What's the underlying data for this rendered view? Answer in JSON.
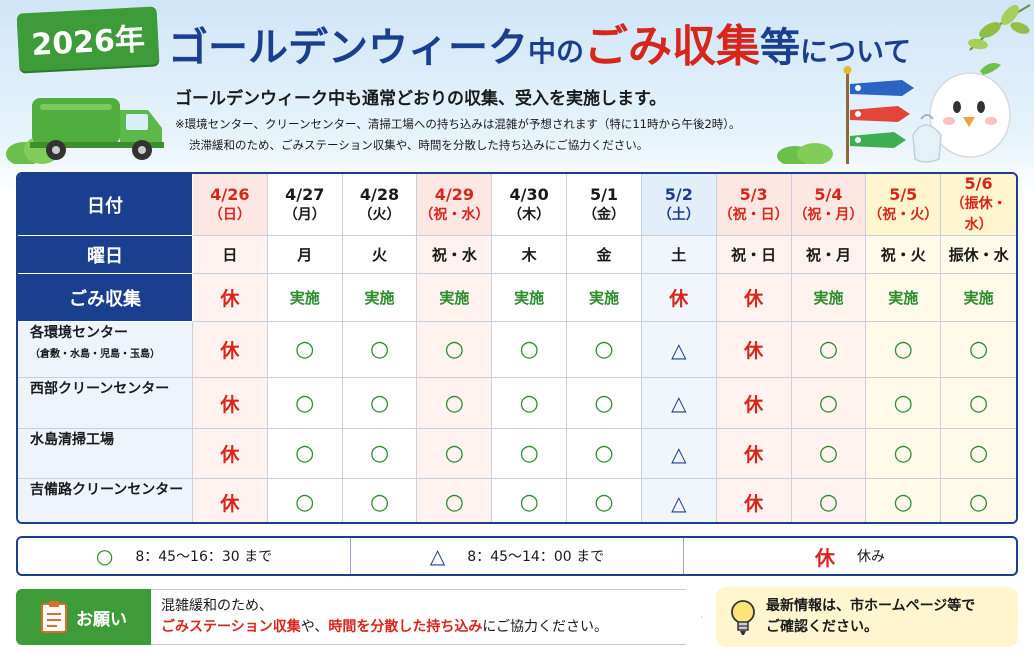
{
  "header": {
    "year": "2026年",
    "title_part1": "ゴールデンウィーク",
    "title_part2": "中の",
    "title_part3": "ごみ収集",
    "title_part4": "等",
    "title_part5": "について",
    "subtitle": "ゴールデンウィーク中も通常どおりの収集、受入を実施します。",
    "note_line1": "※環境センター、クリーンセンター、清掃工場への持ち込みは混雑が予想されます（特に11時から午後2時）。",
    "note_line2": "渋滞緩和のため、ごみステーション収集や、時間を分散した持ち込みにご協力ください。"
  },
  "table": {
    "label_date": "日付",
    "label_weekday": "曜日",
    "label_collection": "ごみ収集",
    "days": [
      {
        "date": "4/26",
        "paren": "（日）",
        "weekday": "日",
        "collection": "休",
        "theme": "pink"
      },
      {
        "date": "4/27",
        "paren": "（月）",
        "weekday": "月",
        "collection": "実施",
        "theme": "white"
      },
      {
        "date": "4/28",
        "paren": "（火）",
        "weekday": "火",
        "collection": "実施",
        "theme": "white"
      },
      {
        "date": "4/29",
        "paren": "（祝・水）",
        "weekday": "祝・水",
        "collection": "実施",
        "theme": "pink"
      },
      {
        "date": "4/30",
        "paren": "（木）",
        "weekday": "木",
        "collection": "実施",
        "theme": "white"
      },
      {
        "date": "5/1",
        "paren": "（金）",
        "weekday": "金",
        "collection": "実施",
        "theme": "white"
      },
      {
        "date": "5/2",
        "paren": "（土）",
        "weekday": "土",
        "collection": "休",
        "theme": "blue"
      },
      {
        "date": "5/3",
        "paren": "（祝・日）",
        "weekday": "祝・日",
        "collection": "休",
        "theme": "pink"
      },
      {
        "date": "5/4",
        "paren": "（祝・月）",
        "weekday": "祝・月",
        "collection": "実施",
        "theme": "pink"
      },
      {
        "date": "5/5",
        "paren": "（祝・火）",
        "weekday": "祝・火",
        "collection": "実施",
        "theme": "yellow"
      },
      {
        "date": "5/6",
        "paren": "（振休・水）",
        "weekday": "振休・水",
        "collection": "実施",
        "theme": "yellow"
      }
    ],
    "facilities": [
      {
        "name": "各環境センター",
        "sub": "（倉敷・水島・児島・玉島）",
        "values": [
          "休",
          "○",
          "○",
          "○",
          "○",
          "○",
          "△",
          "休",
          "○",
          "○",
          "○"
        ]
      },
      {
        "name": "西部クリーンセンター",
        "sub": "",
        "values": [
          "休",
          "○",
          "○",
          "○",
          "○",
          "○",
          "△",
          "休",
          "○",
          "○",
          "○"
        ]
      },
      {
        "name": "水島清掃工場",
        "sub": "",
        "values": [
          "休",
          "○",
          "○",
          "○",
          "○",
          "○",
          "△",
          "休",
          "○",
          "○",
          "○"
        ]
      },
      {
        "name": "吉備路クリーンセンター",
        "sub": "",
        "values": [
          "休",
          "○",
          "○",
          "○",
          "○",
          "○",
          "△",
          "休",
          "○",
          "○",
          "○"
        ]
      }
    ]
  },
  "legend": {
    "circle_symbol": "○",
    "circle_text": "8：45～16：30 まで",
    "triangle_symbol": "△",
    "triangle_text": "8：45～14：00 まで",
    "rest_symbol": "休",
    "rest_text": "休み"
  },
  "request": {
    "tag": "お願い",
    "line1": "混雑緩和のため、",
    "hl1": "ごみステーション収集",
    "mid": "や、",
    "hl2": "時間を分散した持ち込み",
    "tail": "にご協力ください。"
  },
  "info": {
    "line1": "最新情報は、市ホームページ等で",
    "line2": "ご確認ください。"
  },
  "colors": {
    "navy": "#1b3f8f",
    "red": "#d8261c",
    "green": "#3d9b3a"
  }
}
